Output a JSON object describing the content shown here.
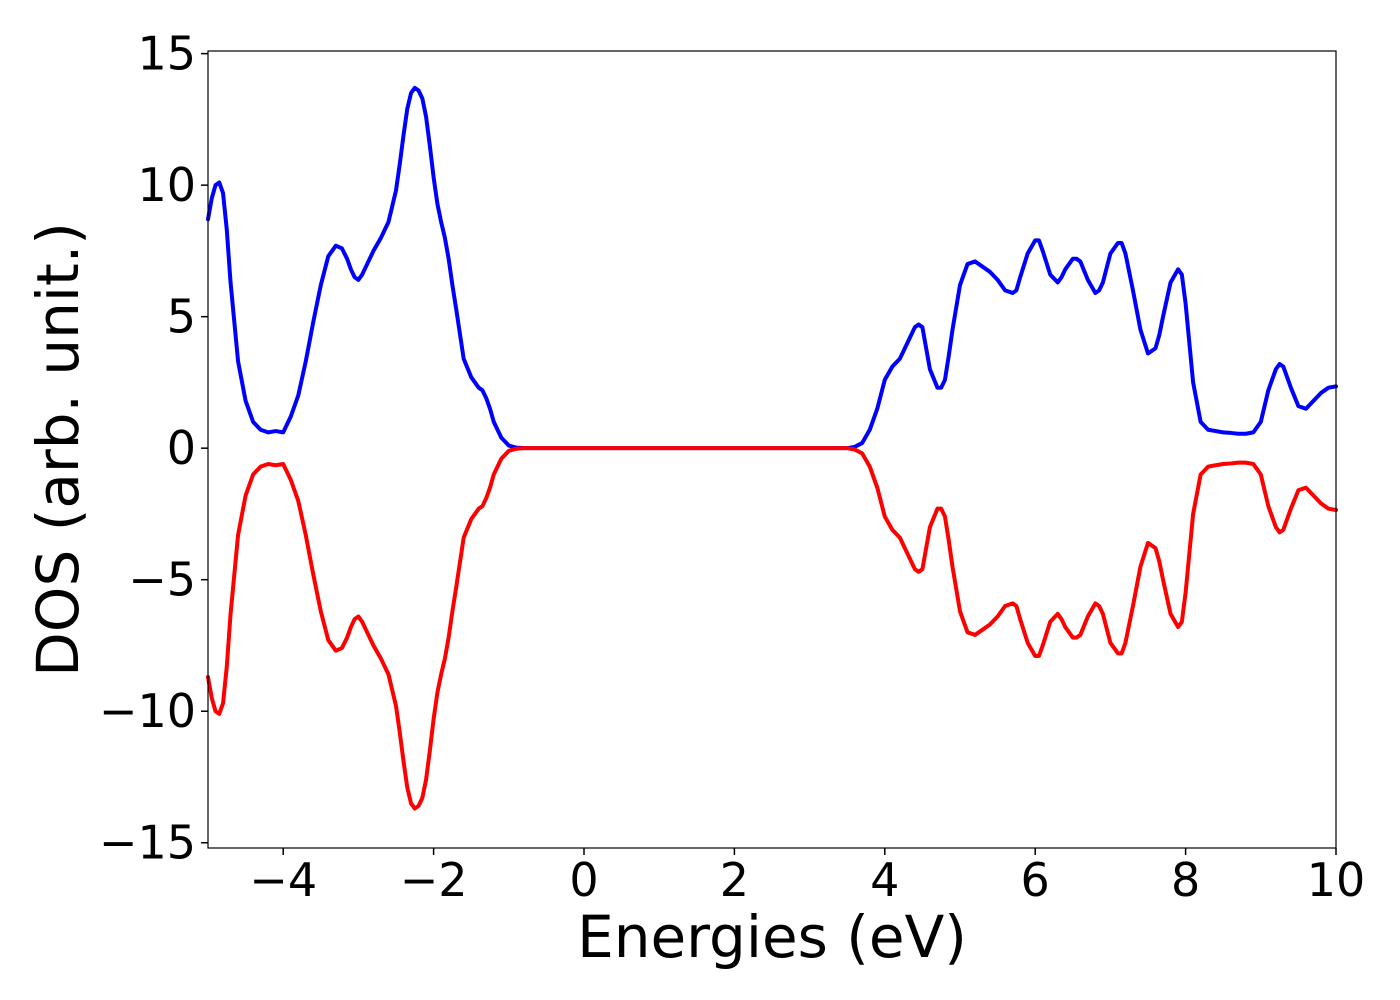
{
  "chart_data": {
    "type": "line",
    "title": "",
    "xlabel": "Energies (eV)",
    "ylabel": "DOS (arb. unit.)",
    "xlim": [
      -5,
      10
    ],
    "ylim": [
      -15.2,
      15.1
    ],
    "xticks": [
      -4,
      -2,
      0,
      2,
      4,
      6,
      8,
      10
    ],
    "xtick_labels": [
      "−4",
      "−2",
      "0",
      "2",
      "4",
      "6",
      "8",
      "10"
    ],
    "yticks": [
      15,
      10,
      5,
      0,
      -5,
      -10,
      -15
    ],
    "ytick_labels": [
      "15",
      "10",
      "5",
      "0",
      "−5",
      "−10",
      "−15"
    ],
    "grid": false,
    "legend": "none",
    "series": [
      {
        "color": "#0000ff",
        "x": [
          -5.0,
          -4.95,
          -4.9,
          -4.85,
          -4.8,
          -4.75,
          -4.7,
          -4.6,
          -4.5,
          -4.4,
          -4.3,
          -4.2,
          -4.1,
          -4.0,
          -3.9,
          -3.8,
          -3.7,
          -3.6,
          -3.5,
          -3.4,
          -3.3,
          -3.22,
          -3.15,
          -3.1,
          -3.05,
          -3.0,
          -2.95,
          -2.9,
          -2.8,
          -2.7,
          -2.6,
          -2.5,
          -2.45,
          -2.4,
          -2.35,
          -2.3,
          -2.25,
          -2.2,
          -2.15,
          -2.1,
          -2.05,
          -2.0,
          -1.95,
          -1.9,
          -1.85,
          -1.8,
          -1.75,
          -1.7,
          -1.6,
          -1.5,
          -1.4,
          -1.35,
          -1.3,
          -1.25,
          -1.2,
          -1.1,
          -1.0,
          -0.9,
          -0.8,
          -0.7,
          -0.6,
          -0.5,
          0.0,
          1.0,
          2.0,
          3.0,
          3.5,
          3.6,
          3.7,
          3.8,
          3.9,
          4.0,
          4.1,
          4.2,
          4.3,
          4.4,
          4.45,
          4.5,
          4.6,
          4.7,
          4.75,
          4.8,
          4.85,
          4.9,
          5.0,
          5.1,
          5.2,
          5.25,
          5.3,
          5.4,
          5.5,
          5.6,
          5.7,
          5.75,
          5.8,
          5.9,
          6.0,
          6.05,
          6.1,
          6.2,
          6.3,
          6.35,
          6.4,
          6.5,
          6.55,
          6.6,
          6.7,
          6.8,
          6.85,
          6.9,
          7.0,
          7.1,
          7.15,
          7.2,
          7.3,
          7.4,
          7.5,
          7.6,
          7.65,
          7.7,
          7.8,
          7.9,
          7.95,
          8.0,
          8.1,
          8.2,
          8.3,
          8.4,
          8.5,
          8.6,
          8.7,
          8.8,
          8.9,
          9.0,
          9.1,
          9.2,
          9.25,
          9.3,
          9.4,
          9.5,
          9.6,
          9.7,
          9.8,
          9.9,
          10.0
        ],
        "y": [
          8.7,
          9.5,
          10.0,
          10.1,
          9.7,
          8.3,
          6.3,
          3.3,
          1.8,
          1.0,
          0.7,
          0.6,
          0.65,
          0.6,
          1.2,
          2.0,
          3.3,
          4.8,
          6.2,
          7.3,
          7.7,
          7.6,
          7.2,
          6.8,
          6.5,
          6.4,
          6.6,
          6.9,
          7.5,
          8.0,
          8.6,
          9.8,
          10.8,
          11.9,
          12.9,
          13.5,
          13.7,
          13.6,
          13.3,
          12.6,
          11.5,
          10.3,
          9.3,
          8.6,
          8.0,
          7.2,
          6.2,
          5.3,
          3.4,
          2.7,
          2.3,
          2.2,
          1.9,
          1.5,
          1.0,
          0.4,
          0.1,
          0.02,
          0.0,
          0.0,
          0.0,
          0.0,
          0.0,
          0.0,
          0.0,
          0.0,
          0.0,
          0.05,
          0.2,
          0.7,
          1.5,
          2.6,
          3.1,
          3.4,
          4.0,
          4.6,
          4.7,
          4.6,
          3.0,
          2.3,
          2.3,
          2.6,
          3.5,
          4.5,
          6.2,
          7.0,
          7.1,
          7.0,
          6.9,
          6.7,
          6.4,
          6.0,
          5.9,
          6.0,
          6.5,
          7.4,
          7.9,
          7.9,
          7.5,
          6.6,
          6.3,
          6.5,
          6.8,
          7.2,
          7.2,
          7.1,
          6.4,
          5.9,
          6.0,
          6.3,
          7.4,
          7.8,
          7.8,
          7.4,
          6.0,
          4.5,
          3.6,
          3.8,
          4.3,
          5.0,
          6.3,
          6.8,
          6.6,
          5.5,
          2.5,
          1.0,
          0.7,
          0.65,
          0.6,
          0.58,
          0.55,
          0.55,
          0.6,
          1.0,
          2.2,
          3.0,
          3.2,
          3.1,
          2.3,
          1.6,
          1.5,
          1.8,
          2.1,
          2.3,
          2.35
        ]
      },
      {
        "color": "#ff0000",
        "x": [
          -5.0,
          -4.95,
          -4.9,
          -4.85,
          -4.8,
          -4.75,
          -4.7,
          -4.6,
          -4.5,
          -4.4,
          -4.3,
          -4.2,
          -4.1,
          -4.0,
          -3.9,
          -3.8,
          -3.7,
          -3.6,
          -3.5,
          -3.4,
          -3.3,
          -3.22,
          -3.15,
          -3.1,
          -3.05,
          -3.0,
          -2.95,
          -2.9,
          -2.8,
          -2.7,
          -2.6,
          -2.5,
          -2.45,
          -2.4,
          -2.35,
          -2.3,
          -2.25,
          -2.2,
          -2.15,
          -2.1,
          -2.05,
          -2.0,
          -1.95,
          -1.9,
          -1.85,
          -1.8,
          -1.75,
          -1.7,
          -1.6,
          -1.5,
          -1.4,
          -1.35,
          -1.3,
          -1.25,
          -1.2,
          -1.1,
          -1.0,
          -0.9,
          -0.8,
          -0.7,
          -0.6,
          -0.5,
          0.0,
          1.0,
          2.0,
          3.0,
          3.5,
          3.6,
          3.7,
          3.8,
          3.9,
          4.0,
          4.1,
          4.2,
          4.3,
          4.4,
          4.45,
          4.5,
          4.6,
          4.7,
          4.75,
          4.8,
          4.85,
          4.9,
          5.0,
          5.1,
          5.2,
          5.25,
          5.3,
          5.4,
          5.5,
          5.6,
          5.7,
          5.75,
          5.8,
          5.9,
          6.0,
          6.05,
          6.1,
          6.2,
          6.3,
          6.35,
          6.4,
          6.5,
          6.55,
          6.6,
          6.7,
          6.8,
          6.85,
          6.9,
          7.0,
          7.1,
          7.15,
          7.2,
          7.3,
          7.4,
          7.5,
          7.6,
          7.65,
          7.7,
          7.8,
          7.9,
          7.95,
          8.0,
          8.1,
          8.2,
          8.3,
          8.4,
          8.5,
          8.6,
          8.7,
          8.8,
          8.9,
          9.0,
          9.1,
          9.2,
          9.25,
          9.3,
          9.4,
          9.5,
          9.6,
          9.7,
          9.8,
          9.9,
          10.0
        ],
        "y": [
          -8.7,
          -9.5,
          -10.0,
          -10.1,
          -9.7,
          -8.3,
          -6.3,
          -3.3,
          -1.8,
          -1.0,
          -0.7,
          -0.6,
          -0.65,
          -0.6,
          -1.2,
          -2.0,
          -3.3,
          -4.8,
          -6.2,
          -7.3,
          -7.7,
          -7.6,
          -7.2,
          -6.8,
          -6.5,
          -6.4,
          -6.6,
          -6.9,
          -7.5,
          -8.0,
          -8.6,
          -9.8,
          -10.8,
          -11.9,
          -12.9,
          -13.5,
          -13.7,
          -13.6,
          -13.3,
          -12.6,
          -11.5,
          -10.3,
          -9.3,
          -8.6,
          -8.0,
          -7.2,
          -6.2,
          -5.3,
          -3.4,
          -2.7,
          -2.3,
          -2.2,
          -1.9,
          -1.5,
          -1.0,
          -0.4,
          -0.1,
          -0.02,
          0.0,
          0.0,
          0.0,
          0.0,
          0.0,
          0.0,
          0.0,
          0.0,
          0.0,
          -0.05,
          -0.2,
          -0.7,
          -1.5,
          -2.6,
          -3.1,
          -3.4,
          -4.0,
          -4.6,
          -4.7,
          -4.6,
          -3.0,
          -2.3,
          -2.3,
          -2.6,
          -3.5,
          -4.5,
          -6.2,
          -7.0,
          -7.1,
          -7.0,
          -6.9,
          -6.7,
          -6.4,
          -6.0,
          -5.9,
          -6.0,
          -6.5,
          -7.4,
          -7.9,
          -7.9,
          -7.5,
          -6.6,
          -6.3,
          -6.5,
          -6.8,
          -7.2,
          -7.2,
          -7.1,
          -6.4,
          -5.9,
          -6.0,
          -6.3,
          -7.4,
          -7.8,
          -7.8,
          -7.4,
          -6.0,
          -4.5,
          -3.6,
          -3.8,
          -4.3,
          -5.0,
          -6.3,
          -6.8,
          -6.6,
          -5.5,
          -2.5,
          -1.0,
          -0.7,
          -0.65,
          -0.6,
          -0.58,
          -0.55,
          -0.55,
          -0.6,
          -1.0,
          -2.2,
          -3.0,
          -3.2,
          -3.1,
          -2.3,
          -1.6,
          -1.5,
          -1.8,
          -2.1,
          -2.3,
          -2.35
        ]
      }
    ]
  }
}
